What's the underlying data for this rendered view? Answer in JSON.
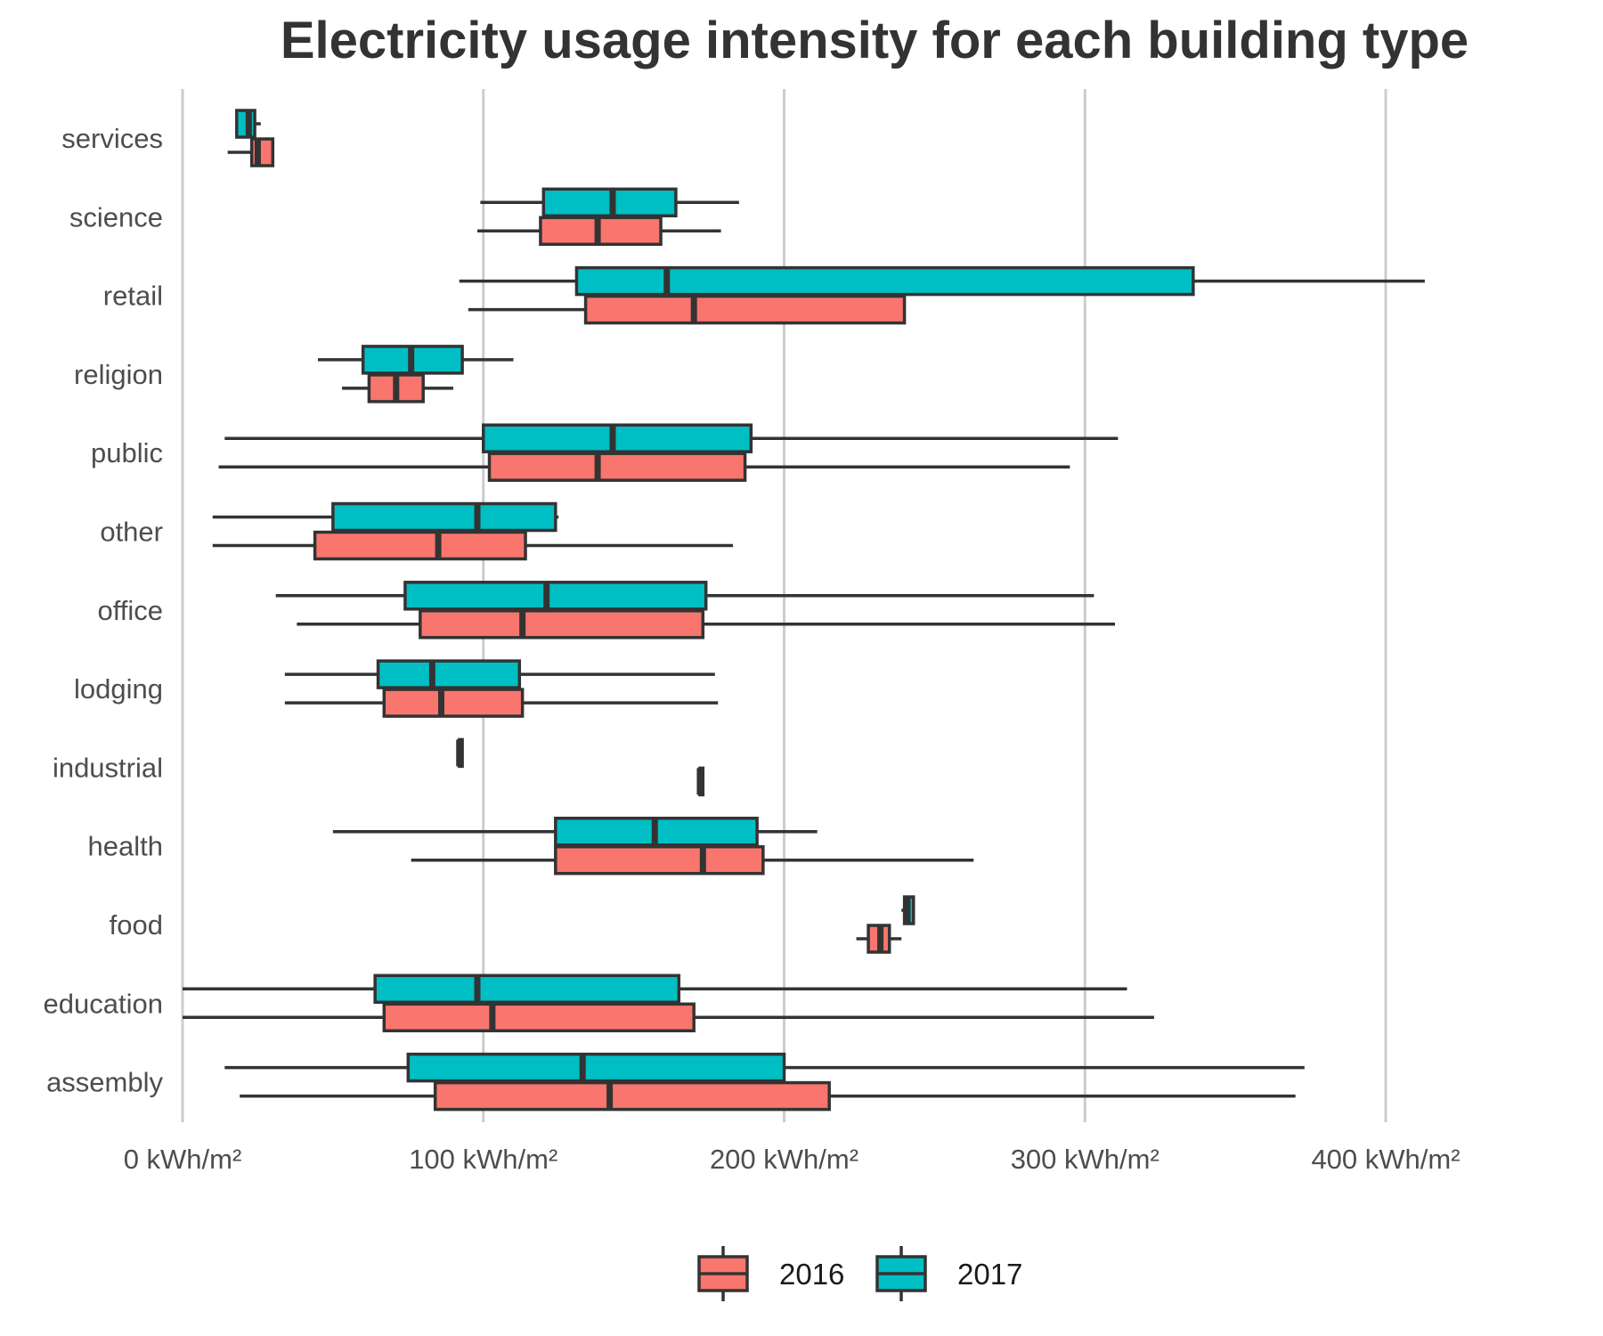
{
  "chart_data": {
    "type": "boxplot",
    "orientation": "horizontal",
    "title": "Electricity usage intensity for each building type",
    "xlabel": "",
    "ylabel": "",
    "xlim": [
      0,
      420
    ],
    "x_ticks": [
      0,
      100,
      200,
      300,
      400
    ],
    "x_tick_labels": [
      "0 kWh/m²",
      "100 kWh/m²",
      "200 kWh/m²",
      "300 kWh/m²",
      "400 kWh/m²"
    ],
    "grid": "vertical major lines",
    "legend_position": "bottom",
    "categories": [
      "services",
      "science",
      "retail",
      "religion",
      "public",
      "other",
      "office",
      "lodging",
      "industrial",
      "health",
      "food",
      "education",
      "assembly"
    ],
    "series": [
      {
        "name": "2016",
        "color": "#F8766D",
        "boxes": [
          {
            "category": "services",
            "whisker_low": 15,
            "q1": 23,
            "median": 25,
            "q3": 30,
            "whisker_high": 30
          },
          {
            "category": "science",
            "whisker_low": 98,
            "q1": 119,
            "median": 138,
            "q3": 159,
            "whisker_high": 179
          },
          {
            "category": "retail",
            "whisker_low": 95,
            "q1": 134,
            "median": 170,
            "q3": 240,
            "whisker_high": 240
          },
          {
            "category": "religion",
            "whisker_low": 53,
            "q1": 62,
            "median": 71,
            "q3": 80,
            "whisker_high": 90
          },
          {
            "category": "public",
            "whisker_low": 12,
            "q1": 102,
            "median": 138,
            "q3": 187,
            "whisker_high": 295
          },
          {
            "category": "other",
            "whisker_low": 10,
            "q1": 44,
            "median": 85,
            "q3": 114,
            "whisker_high": 183
          },
          {
            "category": "office",
            "whisker_low": 38,
            "q1": 79,
            "median": 113,
            "q3": 173,
            "whisker_high": 310
          },
          {
            "category": "lodging",
            "whisker_low": 34,
            "q1": 67,
            "median": 86,
            "q3": 113,
            "whisker_high": 178
          },
          {
            "category": "industrial",
            "whisker_low": 172,
            "q1": 172,
            "median": 172,
            "q3": 173,
            "whisker_high": 173
          },
          {
            "category": "health",
            "whisker_low": 76,
            "q1": 124,
            "median": 173,
            "q3": 193,
            "whisker_high": 263
          },
          {
            "category": "food",
            "whisker_low": 224,
            "q1": 228,
            "median": 232,
            "q3": 235,
            "whisker_high": 239
          },
          {
            "category": "education",
            "whisker_low": 0,
            "q1": 67,
            "median": 103,
            "q3": 170,
            "whisker_high": 323
          },
          {
            "category": "assembly",
            "whisker_low": 19,
            "q1": 84,
            "median": 142,
            "q3": 215,
            "whisker_high": 370
          }
        ]
      },
      {
        "name": "2017",
        "color": "#00BFC4",
        "boxes": [
          {
            "category": "services",
            "whisker_low": 18,
            "q1": 18,
            "median": 22,
            "q3": 24,
            "whisker_high": 26
          },
          {
            "category": "science",
            "whisker_low": 99,
            "q1": 120,
            "median": 143,
            "q3": 164,
            "whisker_high": 185
          },
          {
            "category": "retail",
            "whisker_low": 92,
            "q1": 131,
            "median": 161,
            "q3": 336,
            "whisker_high": 413
          },
          {
            "category": "religion",
            "whisker_low": 45,
            "q1": 60,
            "median": 76,
            "q3": 93,
            "whisker_high": 110
          },
          {
            "category": "public",
            "whisker_low": 14,
            "q1": 100,
            "median": 143,
            "q3": 189,
            "whisker_high": 311
          },
          {
            "category": "other",
            "whisker_low": 10,
            "q1": 50,
            "median": 98,
            "q3": 124,
            "whisker_high": 125
          },
          {
            "category": "office",
            "whisker_low": 31,
            "q1": 74,
            "median": 121,
            "q3": 174,
            "whisker_high": 303
          },
          {
            "category": "lodging",
            "whisker_low": 34,
            "q1": 65,
            "median": 83,
            "q3": 112,
            "whisker_high": 177
          },
          {
            "category": "industrial",
            "whisker_low": 92,
            "q1": 92,
            "median": 92,
            "q3": 93,
            "whisker_high": 93
          },
          {
            "category": "health",
            "whisker_low": 50,
            "q1": 124,
            "median": 157,
            "q3": 191,
            "whisker_high": 211
          },
          {
            "category": "food",
            "whisker_low": 239,
            "q1": 240,
            "median": 241,
            "q3": 243,
            "whisker_high": 243
          },
          {
            "category": "education",
            "whisker_low": 0,
            "q1": 64,
            "median": 98,
            "q3": 165,
            "whisker_high": 314
          },
          {
            "category": "assembly",
            "whisker_low": 14,
            "q1": 75,
            "median": 133,
            "q3": 200,
            "whisker_high": 373
          }
        ]
      }
    ]
  }
}
